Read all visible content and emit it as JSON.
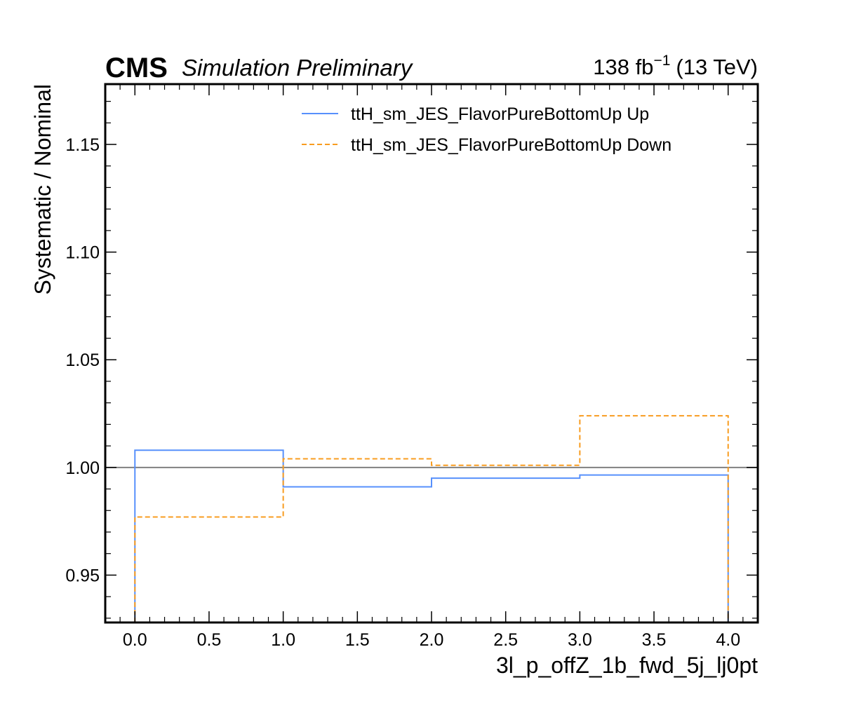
{
  "chart_data": {
    "type": "line",
    "drawstyle": "steps",
    "experiment": "CMS",
    "status": "Simulation Preliminary",
    "lumi_value": "138 fb",
    "lumi_exponent": "−1",
    "energy": "(13 TeV)",
    "xlabel": "3l_p_offZ_1b_fwd_5j_lj0pt",
    "ylabel": "Systematic / Nominal",
    "xlim": [
      -0.2,
      4.2
    ],
    "ylim": [
      0.928,
      1.178
    ],
    "xticks": [
      0.0,
      0.5,
      1.0,
      1.5,
      2.0,
      2.5,
      3.0,
      3.5,
      4.0
    ],
    "xtick_labels": [
      "0.0",
      "0.5",
      "1.0",
      "1.5",
      "2.0",
      "2.5",
      "3.0",
      "3.5",
      "4.0"
    ],
    "yticks": [
      0.95,
      1.0,
      1.05,
      1.1,
      1.15
    ],
    "ytick_labels": [
      "0.95",
      "1.00",
      "1.05",
      "1.10",
      "1.15"
    ],
    "reference_line": 1.0,
    "bin_edges": [
      0,
      1,
      2,
      3,
      4
    ],
    "legend_position": "top-right",
    "grid": false,
    "series": [
      {
        "name": "ttH_sm_JES_FlavorPureBottomUp Up",
        "values": [
          1.008,
          0.991,
          0.995,
          0.9965
        ],
        "color": "#5790fc",
        "linestyle": "solid"
      },
      {
        "name": "ttH_sm_JES_FlavorPureBottomUp Down",
        "values": [
          0.977,
          1.004,
          1.001,
          1.024
        ],
        "color": "#f89c20",
        "linestyle": "dashed"
      }
    ],
    "reference_line_color": "#808080"
  }
}
